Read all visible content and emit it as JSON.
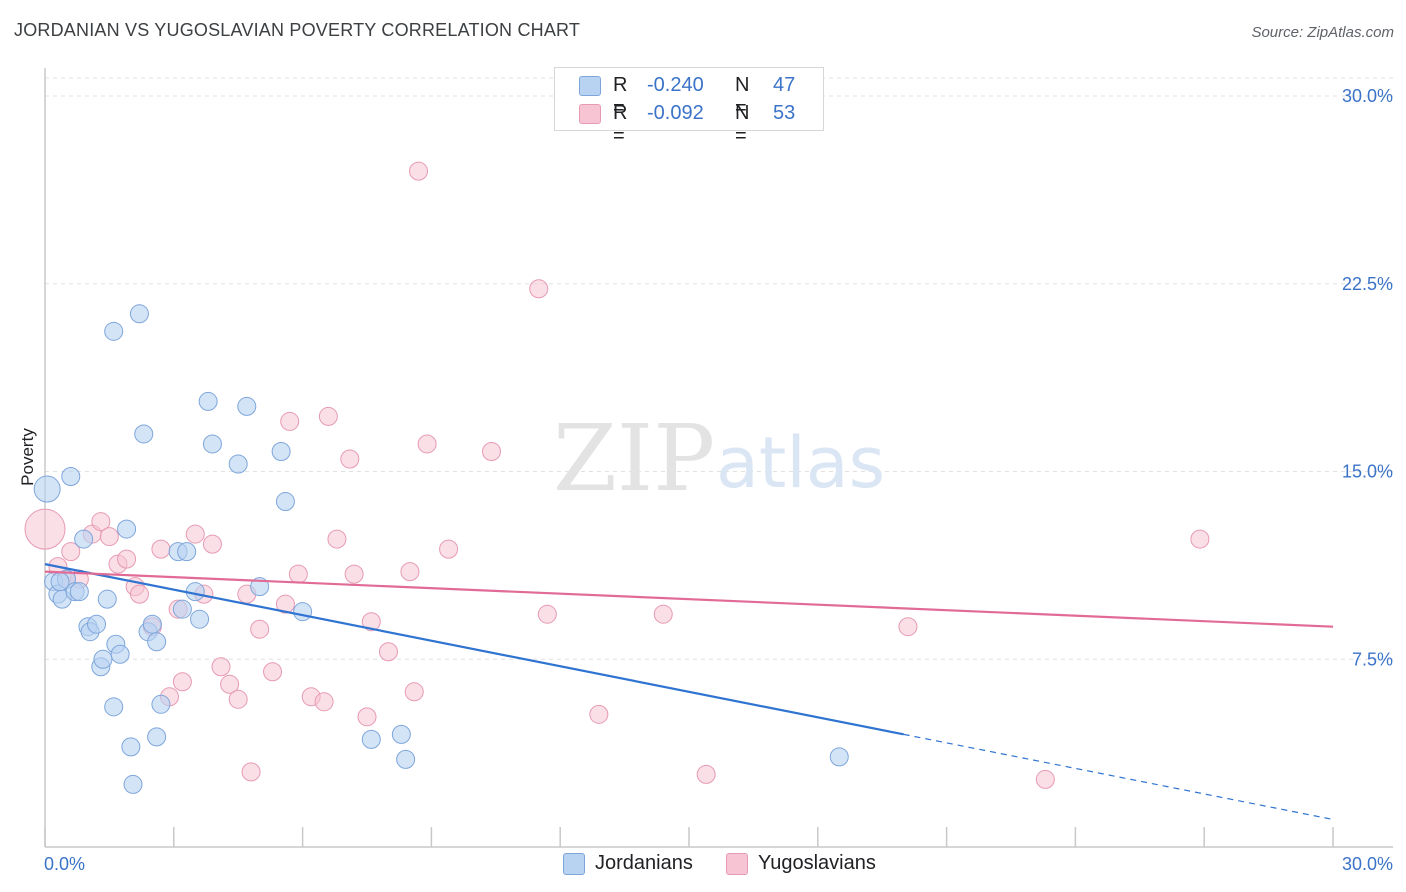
{
  "header": {
    "title": "JORDANIAN VS YUGOSLAVIAN POVERTY CORRELATION CHART",
    "source": "Source: ZipAtlas.com"
  },
  "watermark": {
    "zip": "ZIP",
    "atlas": "atlas"
  },
  "legend": {
    "rows": [
      {
        "r_label": "R =",
        "r_value": "-0.240",
        "n_label": "N =",
        "n_value": "47"
      },
      {
        "r_label": "R =",
        "r_value": "-0.092",
        "n_label": "N =",
        "n_value": "53"
      }
    ]
  },
  "bottom_legend": {
    "jordanians": "Jordanians",
    "yugoslavians": "Yugoslavians"
  },
  "colors": {
    "blue_fill": "#b8d2f2",
    "blue_stroke": "#7ea6db",
    "blue_line": "#2f74d0",
    "pink_fill": "#f6c4d3",
    "pink_stroke": "#e79ab4",
    "pink_line": "#e16b96",
    "grid": "#e0e0e0",
    "tick_label": "#3b73c8"
  },
  "chart_data": {
    "type": "scatter",
    "title": "JORDANIAN VS YUGOSLAVIAN POVERTY CORRELATION CHART",
    "xlabel": "",
    "ylabel": "Poverty",
    "xlim": [
      0,
      30
    ],
    "ylim": [
      0,
      30
    ],
    "x_tick_labels": [
      "0.0%",
      "30.0%"
    ],
    "y_ticks": [
      7.5,
      15.0,
      22.5,
      30.0
    ],
    "y_tick_labels": [
      "7.5%",
      "15.0%",
      "22.5%",
      "30.0%"
    ],
    "grid": true,
    "legend_position": "top-center",
    "series": [
      {
        "name": "Jordanians",
        "color": "#b8d2f2",
        "points": [
          [
            0.05,
            14.3
          ],
          [
            0.6,
            14.8
          ],
          [
            0.2,
            10.6
          ],
          [
            0.3,
            10.1
          ],
          [
            0.4,
            9.9
          ],
          [
            0.5,
            10.7
          ],
          [
            0.7,
            10.2
          ],
          [
            0.8,
            10.2
          ],
          [
            0.9,
            12.3
          ],
          [
            1.0,
            8.8
          ],
          [
            1.05,
            8.6
          ],
          [
            1.2,
            8.9
          ],
          [
            1.3,
            7.2
          ],
          [
            1.35,
            7.5
          ],
          [
            1.45,
            9.9
          ],
          [
            1.6,
            5.6
          ],
          [
            1.65,
            8.1
          ],
          [
            1.75,
            7.7
          ],
          [
            1.9,
            12.7
          ],
          [
            2.0,
            4.0
          ],
          [
            2.05,
            2.5
          ],
          [
            1.6,
            20.6
          ],
          [
            2.2,
            21.3
          ],
          [
            2.3,
            16.5
          ],
          [
            2.4,
            8.6
          ],
          [
            2.5,
            8.9
          ],
          [
            2.6,
            8.2
          ],
          [
            2.6,
            4.4
          ],
          [
            2.7,
            5.7
          ],
          [
            3.1,
            11.8
          ],
          [
            3.2,
            9.5
          ],
          [
            3.3,
            11.8
          ],
          [
            3.5,
            10.2
          ],
          [
            3.6,
            9.1
          ],
          [
            3.8,
            17.8
          ],
          [
            3.9,
            16.1
          ],
          [
            4.5,
            15.3
          ],
          [
            4.7,
            17.6
          ],
          [
            5.0,
            10.4
          ],
          [
            5.5,
            15.8
          ],
          [
            5.6,
            13.8
          ],
          [
            6.0,
            9.4
          ],
          [
            7.6,
            4.3
          ],
          [
            8.3,
            4.5
          ],
          [
            8.4,
            3.5
          ],
          [
            18.5,
            3.6
          ],
          [
            0.35,
            10.6
          ]
        ],
        "trend": {
          "x": [
            0,
            20
          ],
          "y": [
            11.3,
            4.5
          ],
          "dashed_extension": {
            "x": [
              20,
              30
            ],
            "y": [
              4.5,
              1.1
            ]
          }
        }
      },
      {
        "name": "Yugoslavians",
        "color": "#f6c4d3",
        "points": [
          [
            0.0,
            12.7
          ],
          [
            0.3,
            11.2
          ],
          [
            0.6,
            11.8
          ],
          [
            0.8,
            10.7
          ],
          [
            1.1,
            12.5
          ],
          [
            1.3,
            13.0
          ],
          [
            1.5,
            12.4
          ],
          [
            1.7,
            11.3
          ],
          [
            1.9,
            11.5
          ],
          [
            2.1,
            10.4
          ],
          [
            2.2,
            10.1
          ],
          [
            2.5,
            8.8
          ],
          [
            2.7,
            11.9
          ],
          [
            2.9,
            6.0
          ],
          [
            3.1,
            9.5
          ],
          [
            3.2,
            6.6
          ],
          [
            3.5,
            12.5
          ],
          [
            3.7,
            10.1
          ],
          [
            3.9,
            12.1
          ],
          [
            4.1,
            7.2
          ],
          [
            4.3,
            6.5
          ],
          [
            4.5,
            5.9
          ],
          [
            4.7,
            10.1
          ],
          [
            4.8,
            3.0
          ],
          [
            5.0,
            8.7
          ],
          [
            5.3,
            7.0
          ],
          [
            5.6,
            9.7
          ],
          [
            5.7,
            17.0
          ],
          [
            5.9,
            10.9
          ],
          [
            6.2,
            6.0
          ],
          [
            6.5,
            5.8
          ],
          [
            6.6,
            17.2
          ],
          [
            6.8,
            12.3
          ],
          [
            7.1,
            15.5
          ],
          [
            7.2,
            10.9
          ],
          [
            7.5,
            5.2
          ],
          [
            7.6,
            9.0
          ],
          [
            8.0,
            7.8
          ],
          [
            8.5,
            11.0
          ],
          [
            8.6,
            6.2
          ],
          [
            8.7,
            27.0
          ],
          [
            8.9,
            16.1
          ],
          [
            9.4,
            11.9
          ],
          [
            10.4,
            15.8
          ],
          [
            11.5,
            22.3
          ],
          [
            11.7,
            9.3
          ],
          [
            12.9,
            5.3
          ],
          [
            14.4,
            9.3
          ],
          [
            15.4,
            2.9
          ],
          [
            20.1,
            8.8
          ],
          [
            23.3,
            2.7
          ],
          [
            26.9,
            12.3
          ],
          [
            0.5,
            10.7
          ]
        ],
        "trend": {
          "x": [
            0,
            30
          ],
          "y": [
            11.0,
            8.8
          ]
        }
      }
    ]
  }
}
